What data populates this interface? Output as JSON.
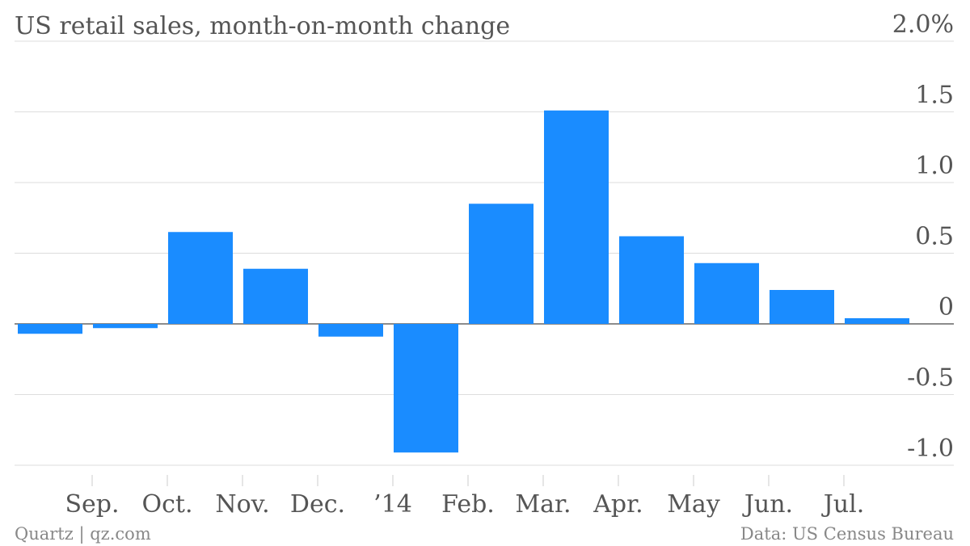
{
  "chart_data": {
    "type": "bar",
    "title": "US retail sales, month-on-month change",
    "xlabel": "",
    "ylabel": "",
    "ylim": [
      -1.0,
      2.0
    ],
    "yticks": [
      -1.0,
      -0.5,
      0,
      0.5,
      1.0,
      1.5,
      2.0
    ],
    "ytick_labels": [
      "-1.0",
      "-0.5",
      "0",
      "0.5",
      "1.0",
      "1.5",
      "2.0%"
    ],
    "x_tick_labels": [
      "Sep.",
      "Oct.",
      "Nov.",
      "Dec.",
      "’14",
      "Feb.",
      "Mar.",
      "Apr.",
      "May",
      "Jun.",
      "Jul."
    ],
    "values": [
      -0.07,
      -0.03,
      0.65,
      0.39,
      -0.09,
      -0.91,
      0.85,
      1.51,
      0.62,
      0.43,
      0.24,
      0.04
    ],
    "grid": true,
    "legend": "none",
    "bar_color": "#1a8cff",
    "source": "Data: US Census Bureau",
    "credit": "Quartz | qz.com"
  }
}
